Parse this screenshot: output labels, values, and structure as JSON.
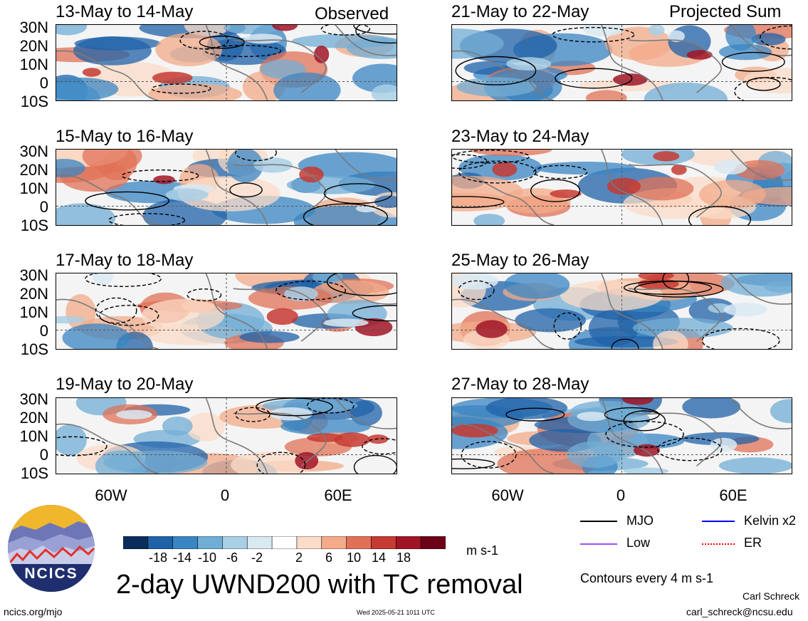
{
  "columns": {
    "left_label": "Observed",
    "right_label": "Projected Sum"
  },
  "panels_left": [
    {
      "title": "13-May to 14-May"
    },
    {
      "title": "15-May to 16-May"
    },
    {
      "title": "17-May to 18-May"
    },
    {
      "title": "19-May to 20-May"
    }
  ],
  "panels_right": [
    {
      "title": "21-May to 22-May"
    },
    {
      "title": "23-May to 24-May"
    },
    {
      "title": "25-May to 26-May"
    },
    {
      "title": "27-May to 28-May"
    }
  ],
  "lat_labels": [
    "30N",
    "20N",
    "10N",
    "0",
    "10S"
  ],
  "lon_labels": [
    "60W",
    "0",
    "60E"
  ],
  "colorbar": {
    "labels": [
      "-18",
      "-14",
      "-10",
      "-6",
      "-2",
      "2",
      "6",
      "10",
      "14",
      "18"
    ],
    "colors": [
      "#0b2d5b",
      "#1f62a8",
      "#3a86c3",
      "#71aed6",
      "#a9cfe5",
      "#d9e9f2",
      "#ffffff",
      "#fbdcc8",
      "#f3ab8a",
      "#e07157",
      "#c53a32",
      "#a11426",
      "#6b0016"
    ],
    "unit": "m s-1"
  },
  "legend": {
    "items": [
      {
        "label": "MJO",
        "color": "#000000"
      },
      {
        "label": "Kelvin x2",
        "color": "#0000ff"
      },
      {
        "label": "Low",
        "color": "#a64dff"
      },
      {
        "label": "ER",
        "color": "#ff0000"
      }
    ],
    "contour_note": "Contours every 4 m s-1"
  },
  "logo": {
    "text": "NCICS"
  },
  "main_title": "2-day UWND200 with TC removal",
  "footer": {
    "url": "ncics.org/mjo",
    "timestamp": "Wed 2025-05-21 1011 UTC",
    "author": "Carl Schreck",
    "email": "carl_schreck@ncsu.edu"
  }
}
